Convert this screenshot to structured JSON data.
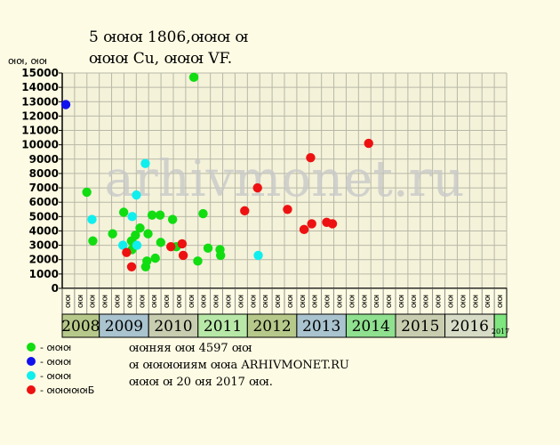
{
  "title_line1": "5 ꙕꙕꙕ 1806,ꙕꙕꙕ ꙕ",
  "title_line2": "ꙕꙕꙕ Cu, ꙕꙕꙕ VF.",
  "legend": [
    {
      "label": "- ꙕꙕꙕ",
      "color": "#11dd11"
    },
    {
      "label": "- ꙕꙕꙕ",
      "color": "#1111ee"
    },
    {
      "label": "- ꙕꙕꙕ",
      "color": "#11eeee"
    },
    {
      "label": "- ꙕꙕꙕꙕꙕБ",
      "color": "#ee1111"
    }
  ],
  "info": {
    "line1": "ꙕꙕняя ꙕꙕ 4597 ꙕꙕ",
    "line2": "ꙕ ꙕꙕꙕꙕиям ꙕꙕа ARHIVMONET.RU",
    "line3": "ꙕꙕꙕ ꙕ 20 ꙕя 2017 ꙕꙕ."
  },
  "chart_data": {
    "type": "scatter",
    "ylabel": "ꙕꙕ, ꙕꙕ",
    "ylim": [
      0,
      15000
    ],
    "yticks": [
      0,
      1000,
      2000,
      3000,
      4000,
      5000,
      6000,
      7000,
      8000,
      9000,
      10000,
      11000,
      12000,
      13000,
      14000,
      15000
    ],
    "month_labels": [
      "ꙕꙕ",
      "ꙕꙕ",
      "ꙕꙕ",
      "ꙕꙕ",
      "ꙕꙕ",
      "ꙕꙕ",
      "ꙕꙕ",
      "ꙕꙕ",
      "ꙕꙕ",
      "ꙕꙕ",
      "ꙕꙕ",
      "ꙕꙕ",
      "ꙕꙕ",
      "ꙕꙕ",
      "ꙕꙕ",
      "ꙕꙕ",
      "ꙕꙕ",
      "ꙕꙕ",
      "ꙕꙕ",
      "ꙕꙕ",
      "ꙕꙕ",
      "ꙕꙕ",
      "ꙕꙕ",
      "ꙕꙕ",
      "ꙕꙕ",
      "ꙕꙕ",
      "ꙕꙕ",
      "ꙕꙕ",
      "ꙕꙕ",
      "ꙕꙕ",
      "ꙕꙕ",
      "ꙕꙕ",
      "ꙕꙕ",
      "ꙕꙕ",
      "ꙕꙕ",
      "ꙕꙕ"
    ],
    "years": [
      {
        "label": "2008",
        "start": 0,
        "end": 3,
        "color": "#b7c98a"
      },
      {
        "label": "2009",
        "start": 3,
        "end": 7,
        "color": "#a9c3cf"
      },
      {
        "label": "2010",
        "start": 7,
        "end": 11,
        "color": "#c9cdb0"
      },
      {
        "label": "2011",
        "start": 11,
        "end": 15,
        "color": "#b8e8a8"
      },
      {
        "label": "2012",
        "start": 15,
        "end": 19,
        "color": "#b7c98a"
      },
      {
        "label": "2013",
        "start": 19,
        "end": 23,
        "color": "#a9c3cf"
      },
      {
        "label": "2014",
        "start": 23,
        "end": 27,
        "color": "#8fe08f"
      },
      {
        "label": "2015",
        "start": 27,
        "end": 31,
        "color": "#c9cdb0"
      },
      {
        "label": "2016",
        "start": 31,
        "end": 35,
        "color": "#d7dcc7"
      },
      {
        "label": "2017",
        "start": 35,
        "end": 36,
        "color": "#7fe57f"
      }
    ],
    "watermark": "arhivmonet.ru",
    "series": [
      {
        "color": "#11dd11",
        "points": [
          [
            1.99,
            6700
          ],
          [
            2.48,
            3300
          ],
          [
            4.08,
            3800
          ],
          [
            4.98,
            5300
          ],
          [
            5.61,
            3300
          ],
          [
            5.65,
            2700
          ],
          [
            5.93,
            3700
          ],
          [
            6.3,
            4200
          ],
          [
            6.76,
            1500
          ],
          [
            6.86,
            1900
          ],
          [
            6.95,
            3800
          ],
          [
            7.28,
            5100
          ],
          [
            7.54,
            2100
          ],
          [
            7.98,
            3200
          ],
          [
            7.93,
            5100
          ],
          [
            8.94,
            4800
          ],
          [
            9.24,
            2900
          ],
          [
            10.66,
            14700
          ],
          [
            10.98,
            1900
          ],
          [
            11.41,
            5200
          ],
          [
            11.81,
            2800
          ],
          [
            12.78,
            2700
          ],
          [
            12.83,
            2300
          ]
        ]
      },
      {
        "color": "#1111ee",
        "points": [
          [
            0.29,
            12800
          ]
        ]
      },
      {
        "color": "#11eeee",
        "points": [
          [
            2.41,
            4800
          ],
          [
            4.91,
            3000
          ],
          [
            5.67,
            5000
          ],
          [
            6.01,
            6500
          ],
          [
            6.05,
            3000
          ],
          [
            6.73,
            8700
          ],
          [
            15.88,
            2300
          ]
        ]
      },
      {
        "color": "#ee1111",
        "points": [
          [
            5.21,
            2500
          ],
          [
            5.62,
            1500
          ],
          [
            8.8,
            2900
          ],
          [
            9.71,
            3100
          ],
          [
            9.8,
            2300
          ],
          [
            14.78,
            5400
          ],
          [
            15.82,
            7000
          ],
          [
            18.25,
            5500
          ],
          [
            19.59,
            4100
          ],
          [
            20.12,
            9100
          ],
          [
            20.21,
            4500
          ],
          [
            21.42,
            4600
          ],
          [
            21.89,
            4500
          ],
          [
            24.82,
            10100
          ]
        ]
      }
    ]
  }
}
